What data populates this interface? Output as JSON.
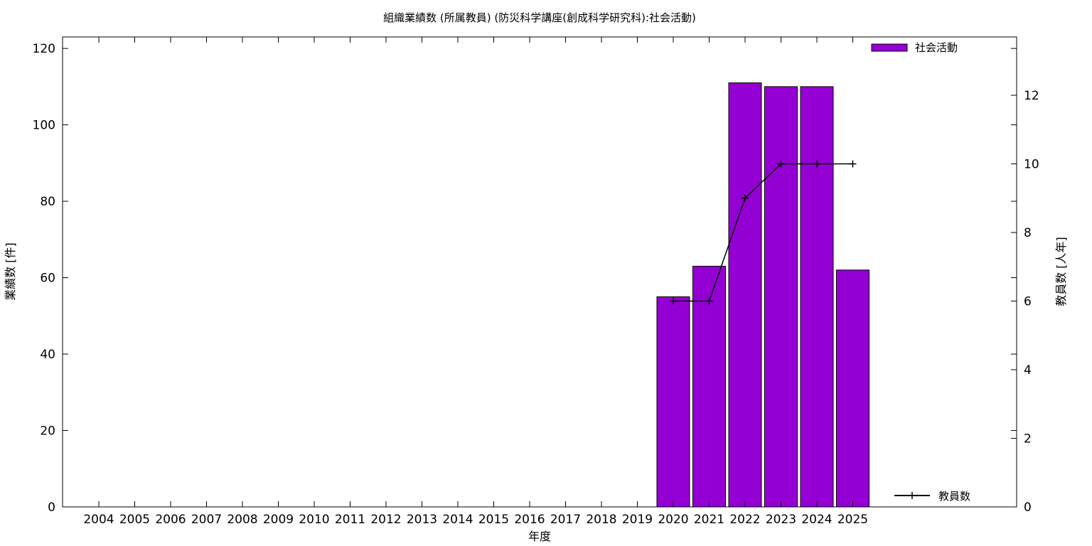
{
  "chart_data": {
    "type": "bar",
    "title": "組織業績数 (所属教員) (防災科学講座(創成科学研究科):社会活動)",
    "xlabel": "年度",
    "ylabel": "業績数 [件]",
    "y2label": "教員数 [人年]",
    "categories": [
      "2004",
      "2005",
      "2006",
      "2007",
      "2008",
      "2009",
      "2010",
      "2011",
      "2012",
      "2013",
      "2014",
      "2015",
      "2016",
      "2017",
      "2018",
      "2019",
      "2020",
      "2021",
      "2022",
      "2023",
      "2024",
      "2025"
    ],
    "ylim": [
      0,
      123
    ],
    "y_ticks": [
      0,
      20,
      40,
      60,
      80,
      100,
      120
    ],
    "y2lim": [
      0,
      13.7
    ],
    "y2_ticks": [
      0,
      2,
      4,
      6,
      8,
      10,
      12
    ],
    "series": [
      {
        "name": "社会活動",
        "type": "bar",
        "axis": "left",
        "color": "#9400d3",
        "values": [
          0,
          0,
          0,
          0,
          0,
          0,
          0,
          0,
          0,
          0,
          0,
          0,
          0,
          0,
          0,
          0,
          55,
          63,
          111,
          110,
          110,
          62
        ]
      },
      {
        "name": "教員数",
        "type": "line",
        "axis": "right",
        "color": "#000000",
        "values": [
          null,
          null,
          null,
          null,
          null,
          null,
          null,
          null,
          null,
          null,
          null,
          null,
          null,
          null,
          null,
          null,
          6,
          6,
          9,
          10,
          10,
          10
        ]
      }
    ],
    "grid": false,
    "legend": [
      "top-right",
      "bottom-right"
    ]
  }
}
